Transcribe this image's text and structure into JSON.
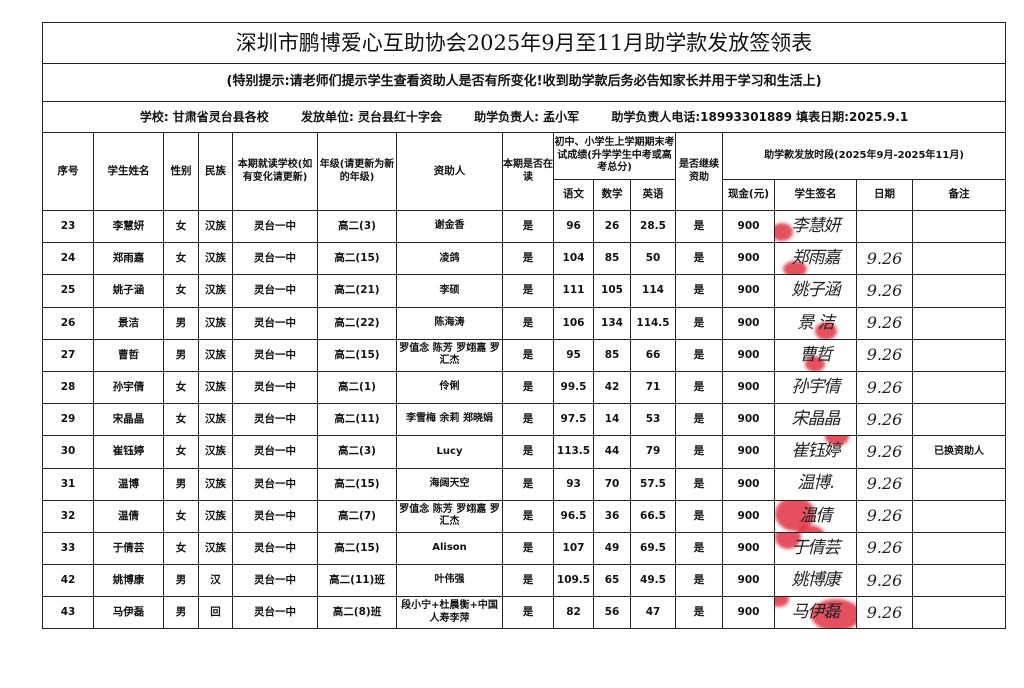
{
  "title": "深圳市鹏博爱心互助协会2025年9月至11月助学款发放签领表",
  "notice": "(特别提示:请老师们提示学生查看资助人是否有所变化!收到助学款后务必告知家长并用于学习和生活上)",
  "info": {
    "school": "学校: 甘肃省灵台县各校",
    "issuer": "发放单位: 灵台县红十字会",
    "manager": "助学负责人: 孟小军",
    "phone_date": "助学负责人电话:18993301889 填表日期:2025.9.1"
  },
  "headers": {
    "no": "序号",
    "name": "学生姓名",
    "gender": "性别",
    "ethnicity": "民族",
    "school": "本期就读学校(如有变化请更新)",
    "grade": "年级(请更新为新的年级)",
    "sponsor": "资助人",
    "enrolled": "本期是否在读",
    "scores": "初中、小学生上学期期末考试成绩(升学学生中考或高考总分)",
    "chinese": "语文",
    "math": "数学",
    "english": "英语",
    "continue": "是否继续资助",
    "period": "助学款发放时段(2025年9月-2025年11月)",
    "cash": "现金(元)",
    "signature": "学生签名",
    "date": "日期",
    "remark": "备注"
  },
  "rows": [
    {
      "no": "23",
      "name": "李慧妍",
      "gender": "女",
      "eth": "汉族",
      "school": "灵台一中",
      "grade": "高二(3)",
      "sponsor": "谢金香",
      "enrolled": "是",
      "chinese": "96",
      "math": "26",
      "english": "28.5",
      "cont": "是",
      "cash": "900",
      "sig": "李慧妍",
      "date": "",
      "remark": ""
    },
    {
      "no": "24",
      "name": "郑雨嘉",
      "gender": "女",
      "eth": "汉族",
      "school": "灵台一中",
      "grade": "高二(15)",
      "sponsor": "凌鸽",
      "enrolled": "是",
      "chinese": "104",
      "math": "85",
      "english": "50",
      "cont": "是",
      "cash": "900",
      "sig": "郑雨嘉",
      "date": "9.26",
      "remark": ""
    },
    {
      "no": "25",
      "name": "姚子涵",
      "gender": "女",
      "eth": "汉族",
      "school": "灵台一中",
      "grade": "高二(21)",
      "sponsor": "李硕",
      "enrolled": "是",
      "chinese": "111",
      "math": "105",
      "english": "114",
      "cont": "是",
      "cash": "900",
      "sig": "姚子涵",
      "date": "9.26",
      "remark": ""
    },
    {
      "no": "26",
      "name": "景洁",
      "gender": "男",
      "eth": "汉族",
      "school": "灵台一中",
      "grade": "高二(22)",
      "sponsor": "陈海涛",
      "enrolled": "是",
      "chinese": "106",
      "math": "134",
      "english": "114.5",
      "cont": "是",
      "cash": "900",
      "sig": "景 洁",
      "date": "9.26",
      "remark": ""
    },
    {
      "no": "27",
      "name": "曹哲",
      "gender": "男",
      "eth": "汉族",
      "school": "灵台一中",
      "grade": "高二(15)",
      "sponsor": "罗值念 陈芳 罗翊嘉 罗汇杰",
      "enrolled": "是",
      "chinese": "95",
      "math": "85",
      "english": "66",
      "cont": "是",
      "cash": "900",
      "sig": "曹哲",
      "date": "9.26",
      "remark": ""
    },
    {
      "no": "28",
      "name": "孙宇倩",
      "gender": "女",
      "eth": "汉族",
      "school": "灵台一中",
      "grade": "高二(1)",
      "sponsor": "伶俐",
      "enrolled": "是",
      "chinese": "99.5",
      "math": "42",
      "english": "71",
      "cont": "是",
      "cash": "900",
      "sig": "孙宇倩",
      "date": "9.26",
      "remark": ""
    },
    {
      "no": "29",
      "name": "宋晶晶",
      "gender": "女",
      "eth": "汉族",
      "school": "灵台一中",
      "grade": "高二(11)",
      "sponsor": "李雪梅 余莉 郑晓娟",
      "enrolled": "是",
      "chinese": "97.5",
      "math": "14",
      "english": "53",
      "cont": "是",
      "cash": "900",
      "sig": "宋晶晶",
      "date": "9.26",
      "remark": ""
    },
    {
      "no": "30",
      "name": "崔钰婷",
      "gender": "女",
      "eth": "汉族",
      "school": "灵台一中",
      "grade": "高二(3)",
      "sponsor": "Lucy",
      "enrolled": "是",
      "chinese": "113.5",
      "math": "44",
      "english": "79",
      "cont": "是",
      "cash": "900",
      "sig": "崔钰婷",
      "date": "9.26",
      "remark": "已换资助人"
    },
    {
      "no": "31",
      "name": "温博",
      "gender": "男",
      "eth": "汉族",
      "school": "灵台一中",
      "grade": "高二(15)",
      "sponsor": "海阔天空",
      "enrolled": "是",
      "chinese": "93",
      "math": "70",
      "english": "57.5",
      "cont": "是",
      "cash": "900",
      "sig": "温博.",
      "date": "9.26",
      "remark": ""
    },
    {
      "no": "32",
      "name": "温倩",
      "gender": "女",
      "eth": "汉族",
      "school": "灵台一中",
      "grade": "高二(7)",
      "sponsor": "罗值念 陈芳 罗翊嘉 罗汇杰",
      "enrolled": "是",
      "chinese": "96.5",
      "math": "36",
      "english": "66.5",
      "cont": "是",
      "cash": "900",
      "sig": "温倩",
      "date": "9.26",
      "remark": ""
    },
    {
      "no": "33",
      "name": "于倩芸",
      "gender": "女",
      "eth": "汉族",
      "school": "灵台一中",
      "grade": "高二(15)",
      "sponsor": "Alison",
      "enrolled": "是",
      "chinese": "107",
      "math": "49",
      "english": "69.5",
      "cont": "是",
      "cash": "900",
      "sig": "于倩芸",
      "date": "9.26",
      "remark": ""
    },
    {
      "no": "42",
      "name": "姚博康",
      "gender": "男",
      "eth": "汉",
      "school": "灵台一中",
      "grade": "高二(11)班",
      "sponsor": "叶伟强",
      "enrolled": "是",
      "chinese": "109.5",
      "math": "65",
      "english": "49.5",
      "cont": "是",
      "cash": "900",
      "sig": "姚博康",
      "date": "9.26",
      "remark": ""
    },
    {
      "no": "43",
      "name": "马伊磊",
      "gender": "男",
      "eth": "回",
      "school": "灵台一中",
      "grade": "高二(8)班",
      "sponsor": "段小宁+杜晨衡+中国人寿李萍",
      "enrolled": "是",
      "chinese": "82",
      "math": "56",
      "english": "47",
      "cont": "是",
      "cash": "900",
      "sig": "马伊磊",
      "date": "9.26",
      "remark": ""
    }
  ],
  "colors": {
    "ink": "#111111",
    "stamp_red": "#dc1428"
  }
}
